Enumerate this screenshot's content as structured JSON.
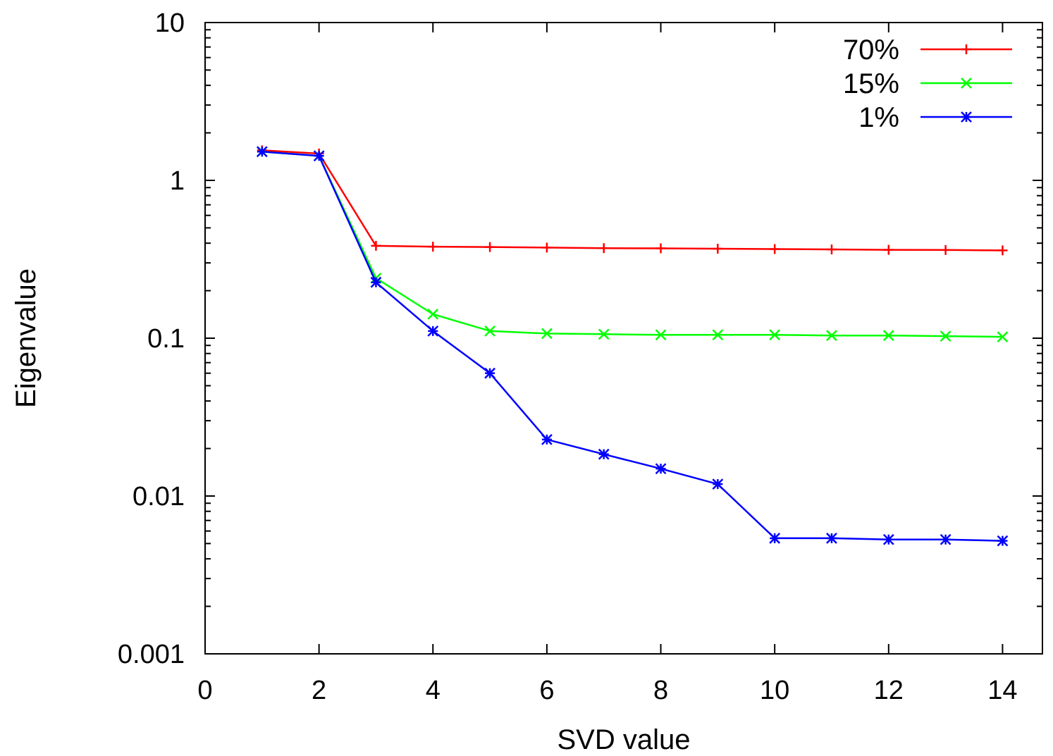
{
  "chart_data": {
    "type": "line",
    "title": "",
    "xlabel": "SVD value",
    "ylabel": "Eigenvalue",
    "xlim": [
      0,
      14.7
    ],
    "ylim": [
      0.001,
      10
    ],
    "yscale": "log",
    "xticks": [
      0,
      2,
      4,
      6,
      8,
      10,
      12,
      14
    ],
    "xtick_labels": [
      "0",
      "2",
      "4",
      "6",
      "8",
      "10",
      "12",
      "14"
    ],
    "yticks": [
      0.001,
      0.01,
      0.1,
      1,
      10
    ],
    "ytick_labels": [
      "0.001",
      "0.01",
      "0.1",
      "1",
      "10"
    ],
    "grid": false,
    "legend_position": "top-right",
    "x": [
      1,
      2,
      3,
      4,
      5,
      6,
      7,
      8,
      9,
      10,
      11,
      12,
      13,
      14
    ],
    "series": [
      {
        "name": "70%",
        "color": "#ff0000",
        "marker": "plus",
        "values": [
          1.55,
          1.48,
          0.385,
          0.38,
          0.378,
          0.375,
          0.372,
          0.371,
          0.369,
          0.367,
          0.365,
          0.363,
          0.362,
          0.36
        ]
      },
      {
        "name": "15%",
        "color": "#00ff00",
        "marker": "cross",
        "values": [
          1.52,
          1.43,
          0.24,
          0.142,
          0.111,
          0.107,
          0.106,
          0.105,
          0.105,
          0.105,
          0.104,
          0.104,
          0.103,
          0.102
        ]
      },
      {
        "name": "1%",
        "color": "#0000ff",
        "marker": "star",
        "values": [
          1.52,
          1.43,
          0.226,
          0.111,
          0.06,
          0.0228,
          0.0184,
          0.0149,
          0.0119,
          0.0054,
          0.0054,
          0.0053,
          0.0053,
          0.0052
        ]
      }
    ]
  }
}
